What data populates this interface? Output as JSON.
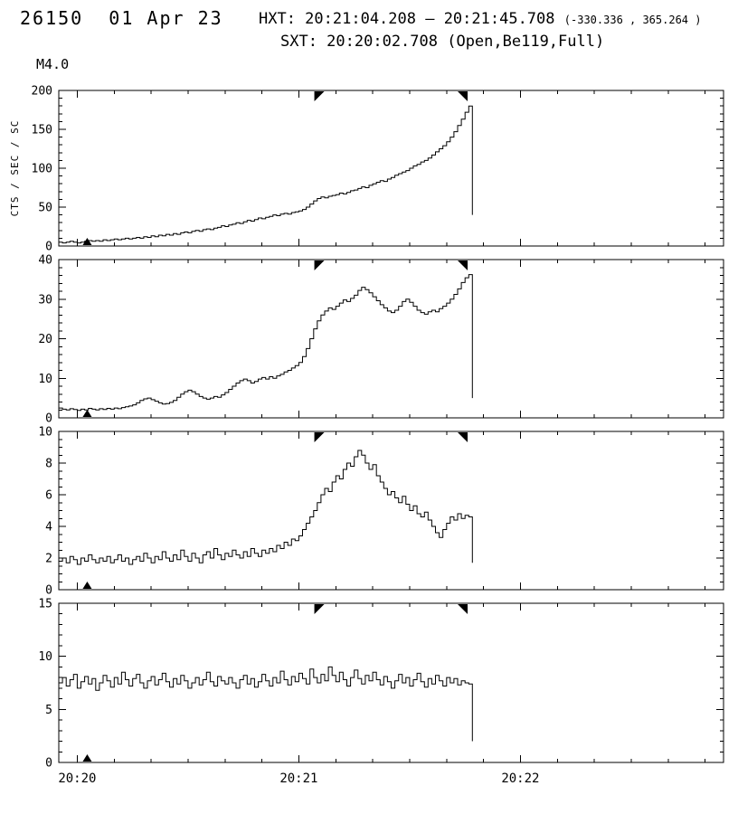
{
  "header": {
    "title": "26150  01 Apr 23",
    "hxt_label": "HXT: 20:21:04.208 — 20:21:45.708",
    "hxt_coords": "(-330.336 , 365.264 )",
    "sxt_label": "SXT: 20:20:02.708 (Open,Be119,Full)",
    "goes_class": "M4.0"
  },
  "axes": {
    "ylabel": "CTS / SEC / SC",
    "x_start_seconds": 0,
    "x_end_seconds": 180,
    "x_minor_step": 10,
    "x_ticks": [
      {
        "t": 5,
        "label": "20:20"
      },
      {
        "t": 65,
        "label": "20:21"
      },
      {
        "t": 125,
        "label": "20:22"
      }
    ]
  },
  "markers": {
    "hxt_start_t": 69.2,
    "hxt_end_t": 110.7,
    "sxt_t": 7.7
  },
  "chart_data": [
    {
      "type": "line",
      "id": "panel-1",
      "ylim": [
        0,
        200
      ],
      "yticks": [
        0,
        50,
        100,
        150,
        200
      ],
      "y_minor_step": 10,
      "t0": 0,
      "dt": 1,
      "values": [
        5,
        4,
        5,
        6,
        5,
        4,
        5,
        6,
        7,
        6,
        7,
        6,
        8,
        7,
        8,
        9,
        8,
        9,
        10,
        9,
        10,
        11,
        10,
        12,
        11,
        13,
        12,
        14,
        13,
        15,
        14,
        16,
        15,
        17,
        18,
        17,
        19,
        20,
        19,
        21,
        22,
        21,
        23,
        24,
        26,
        25,
        27,
        28,
        30,
        29,
        31,
        33,
        32,
        34,
        36,
        35,
        37,
        38,
        40,
        39,
        41,
        42,
        41,
        43,
        44,
        45,
        47,
        50,
        54,
        58,
        61,
        63,
        62,
        64,
        65,
        66,
        68,
        67,
        69,
        71,
        72,
        74,
        76,
        75,
        78,
        80,
        82,
        84,
        83,
        86,
        88,
        91,
        93,
        95,
        97,
        100,
        103,
        105,
        108,
        110,
        113,
        117,
        121,
        125,
        129,
        134,
        140,
        147,
        155,
        163,
        172,
        180,
        40
      ]
    },
    {
      "type": "line",
      "id": "panel-2",
      "ylim": [
        0,
        40
      ],
      "yticks": [
        0,
        10,
        20,
        30,
        40
      ],
      "y_minor_step": 2,
      "t0": 0,
      "dt": 1,
      "values": [
        2.5,
        2.2,
        2.0,
        2.3,
        2.1,
        1.9,
        2.2,
        2.0,
        2.4,
        2.2,
        2.0,
        2.3,
        2.1,
        2.4,
        2.2,
        2.5,
        2.3,
        2.6,
        2.8,
        3.0,
        3.3,
        3.8,
        4.4,
        4.8,
        5.0,
        4.6,
        4.2,
        3.8,
        3.5,
        3.6,
        3.9,
        4.4,
        5.2,
        6.0,
        6.6,
        7.0,
        6.6,
        6.0,
        5.4,
        5.0,
        4.7,
        5.0,
        5.4,
        5.2,
        5.8,
        6.4,
        7.2,
        8.0,
        8.8,
        9.4,
        9.8,
        9.4,
        8.8,
        9.2,
        9.8,
        10.2,
        9.8,
        10.4,
        10.0,
        10.6,
        11.0,
        11.6,
        12.0,
        12.6,
        13.2,
        14.0,
        15.5,
        17.5,
        20.0,
        22.5,
        24.5,
        26.0,
        27.0,
        27.8,
        27.4,
        28.2,
        29.0,
        29.8,
        29.4,
        30.2,
        31.0,
        32.2,
        33.0,
        32.4,
        31.6,
        30.6,
        29.6,
        28.6,
        27.8,
        27.0,
        26.6,
        27.2,
        28.2,
        29.4,
        30.0,
        29.2,
        28.2,
        27.2,
        26.6,
        26.2,
        26.8,
        27.2,
        26.8,
        27.6,
        28.2,
        29.0,
        30.0,
        31.2,
        32.6,
        34.2,
        35.4,
        36.2,
        5.0
      ]
    },
    {
      "type": "line",
      "id": "panel-3",
      "ylim": [
        0,
        10
      ],
      "yticks": [
        0,
        2,
        4,
        6,
        8,
        10
      ],
      "y_minor_step": 0.5,
      "t0": 0,
      "dt": 1,
      "values": [
        1.8,
        2.0,
        1.7,
        2.1,
        1.9,
        1.6,
        2.0,
        1.8,
        2.2,
        1.9,
        1.7,
        2.0,
        1.8,
        2.1,
        1.7,
        1.9,
        2.2,
        1.8,
        2.0,
        1.6,
        1.9,
        2.1,
        1.8,
        2.3,
        2.0,
        1.7,
        2.1,
        1.9,
        2.4,
        2.0,
        1.8,
        2.2,
        1.9,
        2.5,
        2.1,
        1.8,
        2.3,
        2.0,
        1.7,
        2.2,
        2.4,
        2.0,
        2.6,
        2.2,
        1.9,
        2.3,
        2.1,
        2.5,
        2.2,
        2.0,
        2.4,
        2.1,
        2.6,
        2.3,
        2.1,
        2.5,
        2.3,
        2.6,
        2.4,
        2.8,
        2.6,
        3.0,
        2.8,
        3.2,
        3.1,
        3.4,
        3.8,
        4.2,
        4.6,
        5.0,
        5.5,
        6.0,
        6.4,
        6.2,
        6.8,
        7.2,
        7.0,
        7.6,
        8.0,
        7.8,
        8.4,
        8.8,
        8.5,
        8.0,
        7.6,
        7.9,
        7.2,
        6.8,
        6.4,
        6.0,
        6.2,
        5.8,
        5.5,
        5.9,
        5.4,
        5.0,
        5.3,
        4.8,
        4.6,
        4.9,
        4.4,
        4.0,
        3.6,
        3.3,
        3.8,
        4.2,
        4.6,
        4.4,
        4.8,
        4.5,
        4.7,
        4.6,
        1.7
      ]
    },
    {
      "type": "line",
      "id": "panel-4",
      "ylim": [
        0,
        15
      ],
      "yticks": [
        0,
        5,
        10,
        15
      ],
      "y_minor_step": 1,
      "t0": 0,
      "dt": 1,
      "values": [
        7.5,
        8.0,
        7.2,
        7.8,
        8.3,
        7.0,
        7.6,
        8.1,
        7.4,
        7.9,
        6.8,
        7.5,
        8.2,
        7.7,
        7.1,
        8.0,
        7.4,
        8.5,
        7.8,
        7.2,
        7.9,
        8.3,
        7.5,
        7.0,
        7.7,
        8.1,
        7.3,
        7.8,
        8.4,
        7.6,
        7.1,
        7.9,
        7.4,
        8.2,
        7.7,
        7.0,
        7.5,
        8.0,
        7.3,
        7.8,
        8.5,
        7.6,
        7.2,
        8.1,
        7.7,
        7.4,
        8.0,
        7.5,
        7.0,
        7.8,
        8.2,
        7.4,
        7.9,
        7.1,
        7.6,
        8.3,
        7.7,
        7.2,
        8.0,
        7.5,
        8.6,
        7.8,
        7.3,
        8.1,
        7.6,
        8.4,
        7.9,
        7.4,
        8.8,
        8.0,
        7.5,
        8.3,
        7.7,
        9.0,
        8.2,
        7.6,
        8.5,
        7.8,
        7.2,
        8.0,
        8.7,
        7.9,
        7.4,
        8.2,
        7.7,
        8.5,
        7.8,
        7.3,
        8.1,
        7.6,
        7.0,
        7.7,
        8.3,
        7.5,
        8.0,
        7.2,
        7.8,
        8.4,
        7.6,
        7.1,
        7.9,
        7.4,
        8.2,
        7.7,
        7.2,
        8.0,
        7.5,
        7.9,
        7.3,
        7.7,
        7.5,
        7.4,
        2.0
      ]
    }
  ]
}
